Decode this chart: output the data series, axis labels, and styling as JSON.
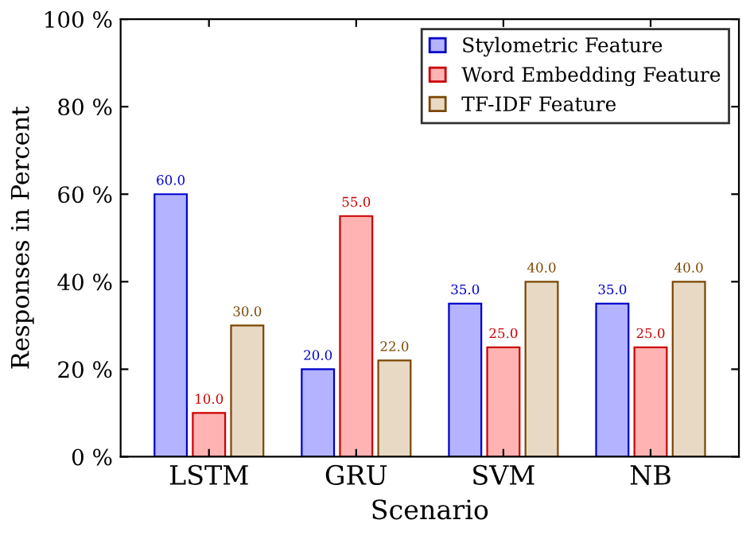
{
  "chart_data": {
    "type": "bar",
    "xlabel": "Scenario",
    "ylabel": "Responses in Percent",
    "categories": [
      "LSTM",
      "GRU",
      "SVM",
      "NB"
    ],
    "series": [
      {
        "name": "Stylometric Feature",
        "color": "#b3b3ff",
        "values": [
          60,
          20,
          35,
          35
        ],
        "value_labels": [
          "60.0",
          "20.0",
          "35.0",
          "35.0"
        ]
      },
      {
        "name": "Word Embedding Feature",
        "color": "#ffb3b3",
        "values": [
          10,
          55,
          25,
          25
        ],
        "value_labels": [
          "10.0",
          "55.0",
          "25.0",
          "25.0"
        ]
      },
      {
        "name": "TF-IDF Feature",
        "color": "#e8d9c5",
        "values": [
          30,
          22,
          40,
          40
        ],
        "value_labels": [
          "30.0",
          "22.0",
          "40.0",
          "40.0"
        ]
      }
    ],
    "ylim": [
      0,
      100
    ],
    "yticks": [
      {
        "value": 0,
        "label": "0 %"
      },
      {
        "value": 20,
        "label": "20 %"
      },
      {
        "value": 40,
        "label": "40 %"
      },
      {
        "value": 60,
        "label": "60 %"
      },
      {
        "value": 80,
        "label": "80 %"
      },
      {
        "value": 100,
        "label": "100 %"
      }
    ],
    "legend": "top right"
  }
}
